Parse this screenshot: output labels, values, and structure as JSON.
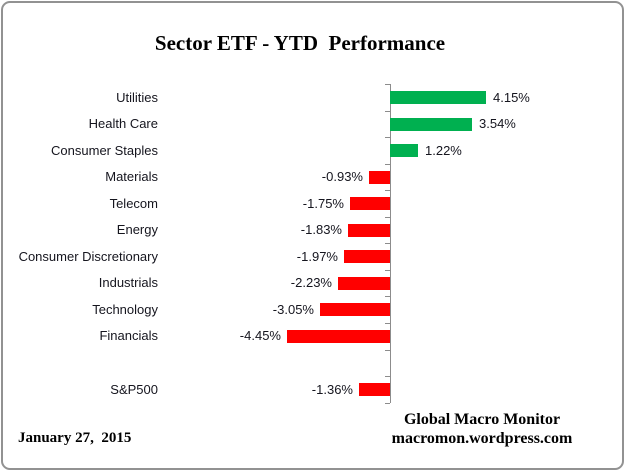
{
  "chart_data": {
    "type": "bar",
    "orientation": "horizontal",
    "title": "Sector ETF - YTD  Performance",
    "categories": [
      "Utilities",
      "Health Care",
      "Consumer Staples",
      "Materials",
      "Telecom",
      "Energy",
      "Consumer Discretionary",
      "Industrials",
      "Technology",
      "Financials",
      "",
      "S&P500"
    ],
    "values": [
      4.15,
      3.54,
      1.22,
      -0.93,
      -1.75,
      -1.83,
      -1.97,
      -2.23,
      -3.05,
      -4.45,
      null,
      -1.36
    ],
    "value_labels": [
      "4.15%",
      "3.54%",
      "1.22%",
      "-0.93%",
      "-1.75%",
      "-1.83%",
      "-1.97%",
      "-2.23%",
      "-3.05%",
      "-4.45%",
      "",
      "-1.36%"
    ],
    "xlabel": "",
    "ylabel": "",
    "xlim": [
      -5,
      5
    ],
    "grid": false,
    "legend": false,
    "positive_color": "#00B050",
    "negative_color": "#FF0000",
    "axis_color": "#8C8C8C"
  },
  "footer": {
    "date": "January 27,  2015",
    "brand_line1": "Global Macro Monitor",
    "brand_line2": "macromon.wordpress.com"
  }
}
